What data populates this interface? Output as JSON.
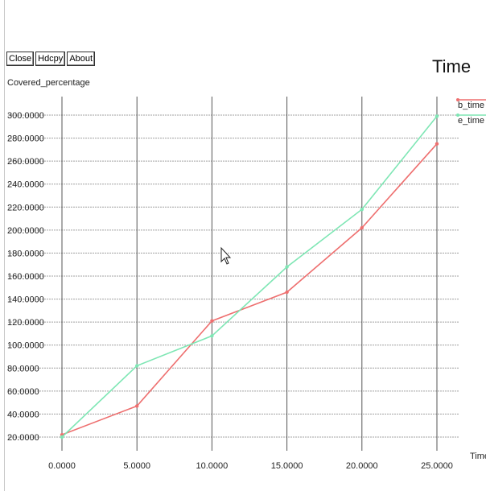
{
  "window": {
    "buttons": [
      {
        "label": "Close"
      },
      {
        "label": "Hdcpy"
      },
      {
        "label": "About"
      }
    ]
  },
  "chart_data": {
    "type": "line",
    "title": "Time",
    "ylabel": "Covered_percentage",
    "xlabel": "Time",
    "x": [
      0,
      5,
      10,
      15,
      20,
      25
    ],
    "xticks": [
      "0.0000",
      "5.0000",
      "10.0000",
      "15.0000",
      "20.0000",
      "25.0000"
    ],
    "yticks": [
      "20.0000",
      "40.0000",
      "60.0000",
      "80.0000",
      "100.0000",
      "120.0000",
      "140.0000",
      "160.0000",
      "180.0000",
      "200.0000",
      "220.0000",
      "240.0000",
      "260.0000",
      "280.0000",
      "300.0000"
    ],
    "xlim": [
      0,
      25
    ],
    "ylim": [
      20,
      300
    ],
    "grid": true,
    "legend_position": "top-right",
    "series": [
      {
        "name": "b_time",
        "color": "#ee6f6f",
        "values": [
          22,
          47,
          121,
          146,
          202,
          275
        ]
      },
      {
        "name": "e_time",
        "color": "#7ee6b4",
        "values": [
          20,
          82,
          108,
          168,
          218,
          299
        ]
      }
    ],
    "colors": {
      "grid_horizontal": "#a0a0a0",
      "grid_vertical": "#555555"
    }
  }
}
